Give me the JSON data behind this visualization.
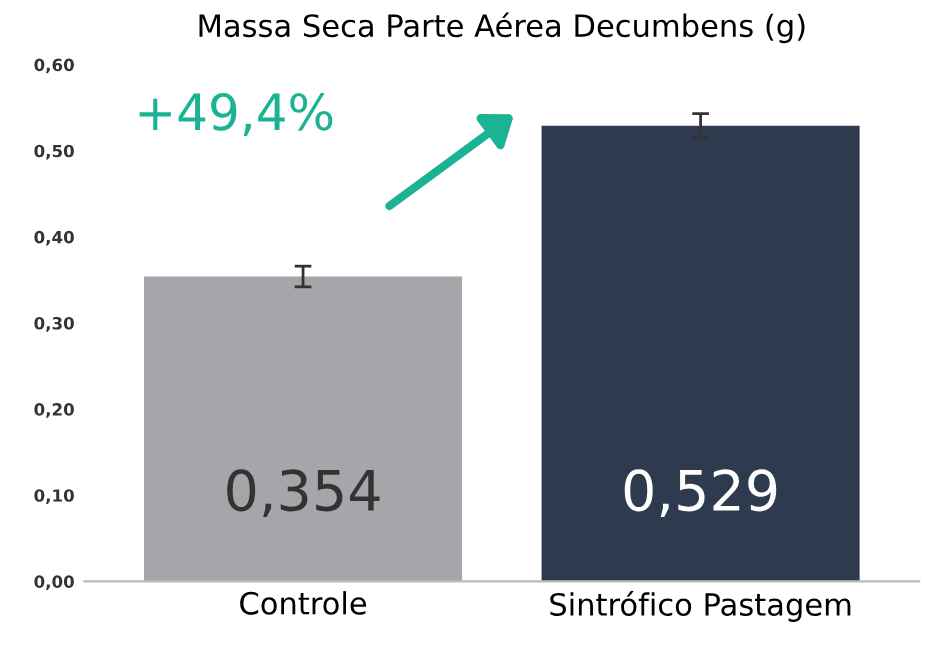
{
  "chart_data": {
    "type": "bar",
    "title": "Massa Seca Parte Aérea Decumbens (g)",
    "categories": [
      "Controle",
      "Sintrófico Pastagem"
    ],
    "values": [
      0.354,
      0.529
    ],
    "colors": [
      "#a5a6a9",
      "#2e3a4e"
    ],
    "errors": [
      0.012,
      0.014
    ],
    "value_labels": [
      "0,354",
      "0,529"
    ],
    "ylim": [
      0,
      0.6
    ],
    "yticks": [
      {
        "value": 0,
        "label": "0,00"
      },
      {
        "value": 0.1,
        "label": "0,10"
      },
      {
        "value": 0.2,
        "label": "0,20"
      },
      {
        "value": 0.3,
        "label": "0,30"
      },
      {
        "value": 0.4,
        "label": "0,40"
      },
      {
        "value": 0.5,
        "label": "0,50"
      },
      {
        "value": 0.6,
        "label": "0,60"
      }
    ],
    "annotations": [
      "+49,4%"
    ],
    "grid": false,
    "legend": false
  }
}
